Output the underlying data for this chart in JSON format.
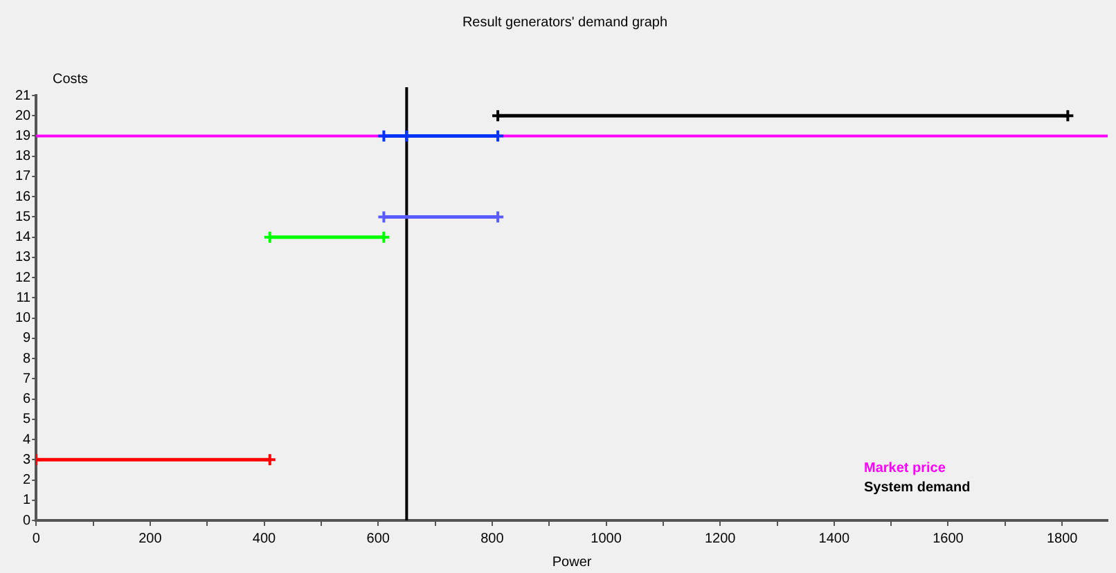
{
  "chart_data": {
    "type": "line",
    "title": "Result generators' demand graph",
    "xlabel": "Power",
    "ylabel": "Costs",
    "xlim": [
      0,
      1880
    ],
    "xticks": [
      0,
      {
        "value": 100,
        "label": null
      },
      200,
      {
        "value": 300,
        "label": null
      },
      400,
      {
        "value": 500,
        "label": null
      },
      600,
      {
        "value": 700,
        "label": null
      },
      800,
      {
        "value": 900,
        "label": null
      },
      1000,
      {
        "value": 1100,
        "label": null
      },
      1200,
      {
        "value": 1300,
        "label": null
      },
      1400,
      {
        "value": 1500,
        "label": null
      },
      1600,
      {
        "value": 1700,
        "label": null
      },
      1800
    ],
    "ylim": [
      0,
      21
    ],
    "yticks": [
      0,
      1,
      2,
      3,
      4,
      5,
      6,
      7,
      8,
      9,
      10,
      11,
      12,
      13,
      14,
      15,
      16,
      17,
      18,
      19,
      20,
      21
    ],
    "grid": false,
    "marker": "cross",
    "series": [
      {
        "color": "#ff0000",
        "x": [
          0,
          410
        ],
        "values": [
          3,
          3
        ]
      },
      {
        "color": "#00ff00",
        "x": [
          410,
          610
        ],
        "values": [
          14,
          14
        ]
      },
      {
        "color": "#5a5aff",
        "x": [
          610,
          810
        ],
        "values": [
          15,
          15
        ]
      },
      {
        "color": "#0033ff",
        "x": [
          610,
          650,
          810
        ],
        "values": [
          19,
          19,
          19
        ]
      },
      {
        "color": "#000000",
        "x": [
          810,
          1810
        ],
        "values": [
          20,
          20
        ]
      }
    ],
    "ref_lines": [
      {
        "axis": "y",
        "value": 19,
        "label": "Market price",
        "color": "#ff00ff"
      },
      {
        "axis": "x",
        "value": 650,
        "label": "System demand",
        "color": "#000000"
      }
    ]
  }
}
